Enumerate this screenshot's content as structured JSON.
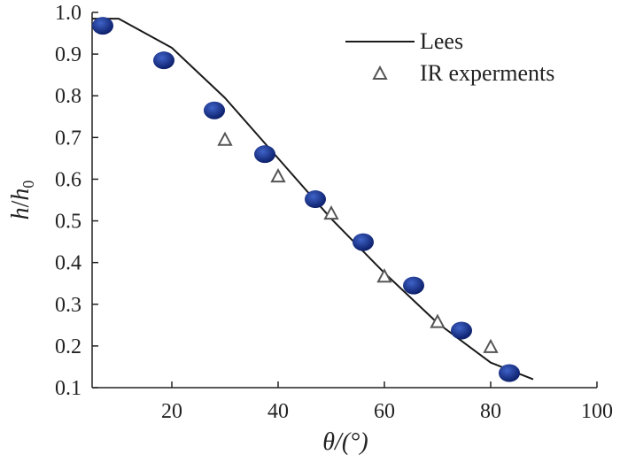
{
  "chart_data": {
    "type": "scatter",
    "xlabel": "θ/(°)",
    "ylabel": {
      "num": "h",
      "slash": "/",
      "den": "h",
      "sub": "0"
    },
    "xlim": [
      5,
      100
    ],
    "ylim": [
      0.1,
      1.0
    ],
    "xticks": [
      20,
      40,
      60,
      80,
      100
    ],
    "yticks": [
      0.1,
      0.2,
      0.3,
      0.4,
      0.5,
      0.6,
      0.7,
      0.8,
      0.9,
      1.0
    ],
    "legend_position": "top-right",
    "grid": false,
    "series": [
      {
        "name": "Lees",
        "style": "line",
        "color": "#1a1a1a",
        "x": [
          5,
          10,
          20,
          30,
          40,
          50,
          60,
          70,
          80,
          88
        ],
        "y": [
          0.985,
          0.985,
          0.915,
          0.795,
          0.65,
          0.505,
          0.375,
          0.255,
          0.16,
          0.12
        ]
      },
      {
        "name": "IR experments",
        "style": "triangle",
        "color": "#555555",
        "x": [
          30,
          40,
          50,
          60,
          70,
          80
        ],
        "y": [
          0.695,
          0.607,
          0.518,
          0.367,
          0.258,
          0.198
        ]
      },
      {
        "name": "",
        "style": "ellipse",
        "color": "#1f3f9f",
        "x": [
          7.0,
          18.5,
          28.0,
          37.5,
          47.0,
          56.0,
          65.5,
          74.5,
          83.5
        ],
        "y": [
          0.968,
          0.885,
          0.765,
          0.66,
          0.552,
          0.449,
          0.345,
          0.237,
          0.135
        ]
      }
    ]
  }
}
